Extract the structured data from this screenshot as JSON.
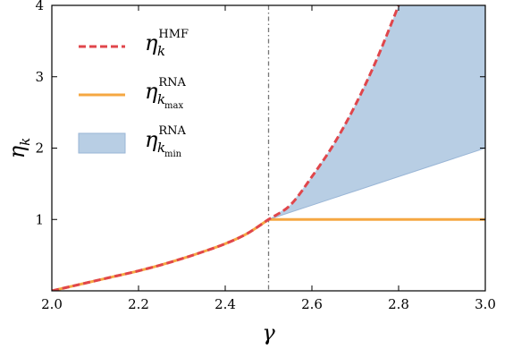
{
  "chart_data": {
    "type": "line",
    "xlabel": "γ",
    "ylabel": "η",
    "ylabel_sub": "k",
    "xlim": [
      2.0,
      3.0
    ],
    "ylim": [
      0,
      4
    ],
    "xticks": [
      2.0,
      2.2,
      2.4,
      2.6,
      2.8,
      3.0
    ],
    "xtick_labels": [
      "2.0",
      "2.2",
      "2.4",
      "2.6",
      "2.8",
      "3.0"
    ],
    "yticks": [
      1,
      2,
      3,
      4
    ],
    "ytick_labels": [
      "1",
      "2",
      "3",
      "4"
    ],
    "vline": {
      "x": 2.5,
      "style": "dash-dot",
      "color": "#777777"
    },
    "grid": false,
    "legend_position": "upper-left",
    "series": [
      {
        "name": "η_k^HMF",
        "label_main": "η",
        "label_sub": "k",
        "label_sup": "HMF",
        "style": "dashed",
        "color": "#e0464b",
        "x": [
          2.0,
          2.05,
          2.1,
          2.15,
          2.2,
          2.25,
          2.3,
          2.35,
          2.4,
          2.45,
          2.5,
          2.55,
          2.6,
          2.65,
          2.7,
          2.75,
          2.8
        ],
        "y": [
          0.0,
          0.07,
          0.14,
          0.21,
          0.28,
          0.36,
          0.45,
          0.55,
          0.66,
          0.8,
          1.0,
          1.2,
          1.6,
          2.05,
          2.6,
          3.25,
          4.0
        ]
      },
      {
        "name": "η_kmax^RNA",
        "label_main": "η",
        "label_sub": "k",
        "label_subsub": "max",
        "label_sup": "RNA",
        "style": "solid",
        "color": "#f5a742",
        "x": [
          2.0,
          2.05,
          2.1,
          2.15,
          2.2,
          2.25,
          2.3,
          2.35,
          2.4,
          2.45,
          2.5,
          3.0
        ],
        "y": [
          0.0,
          0.07,
          0.14,
          0.21,
          0.28,
          0.36,
          0.45,
          0.55,
          0.66,
          0.8,
          1.0,
          1.0
        ]
      },
      {
        "name": "η_kmin^RNA",
        "label_main": "η",
        "label_sub": "k",
        "label_subsub": "min",
        "label_sup": "RNA",
        "style": "fill",
        "color": "#b8cee4",
        "edge_color": "#9ab6d6",
        "x": [
          2.5,
          2.55,
          2.6,
          2.65,
          2.7,
          2.75,
          2.8,
          3.0
        ],
        "y_lower": [
          1.0,
          1.1,
          1.2,
          1.3,
          1.4,
          1.5,
          1.6,
          2.0
        ],
        "y_upper": [
          1.0,
          1.2,
          1.6,
          2.05,
          2.6,
          3.25,
          4.0,
          4.0
        ]
      }
    ]
  }
}
